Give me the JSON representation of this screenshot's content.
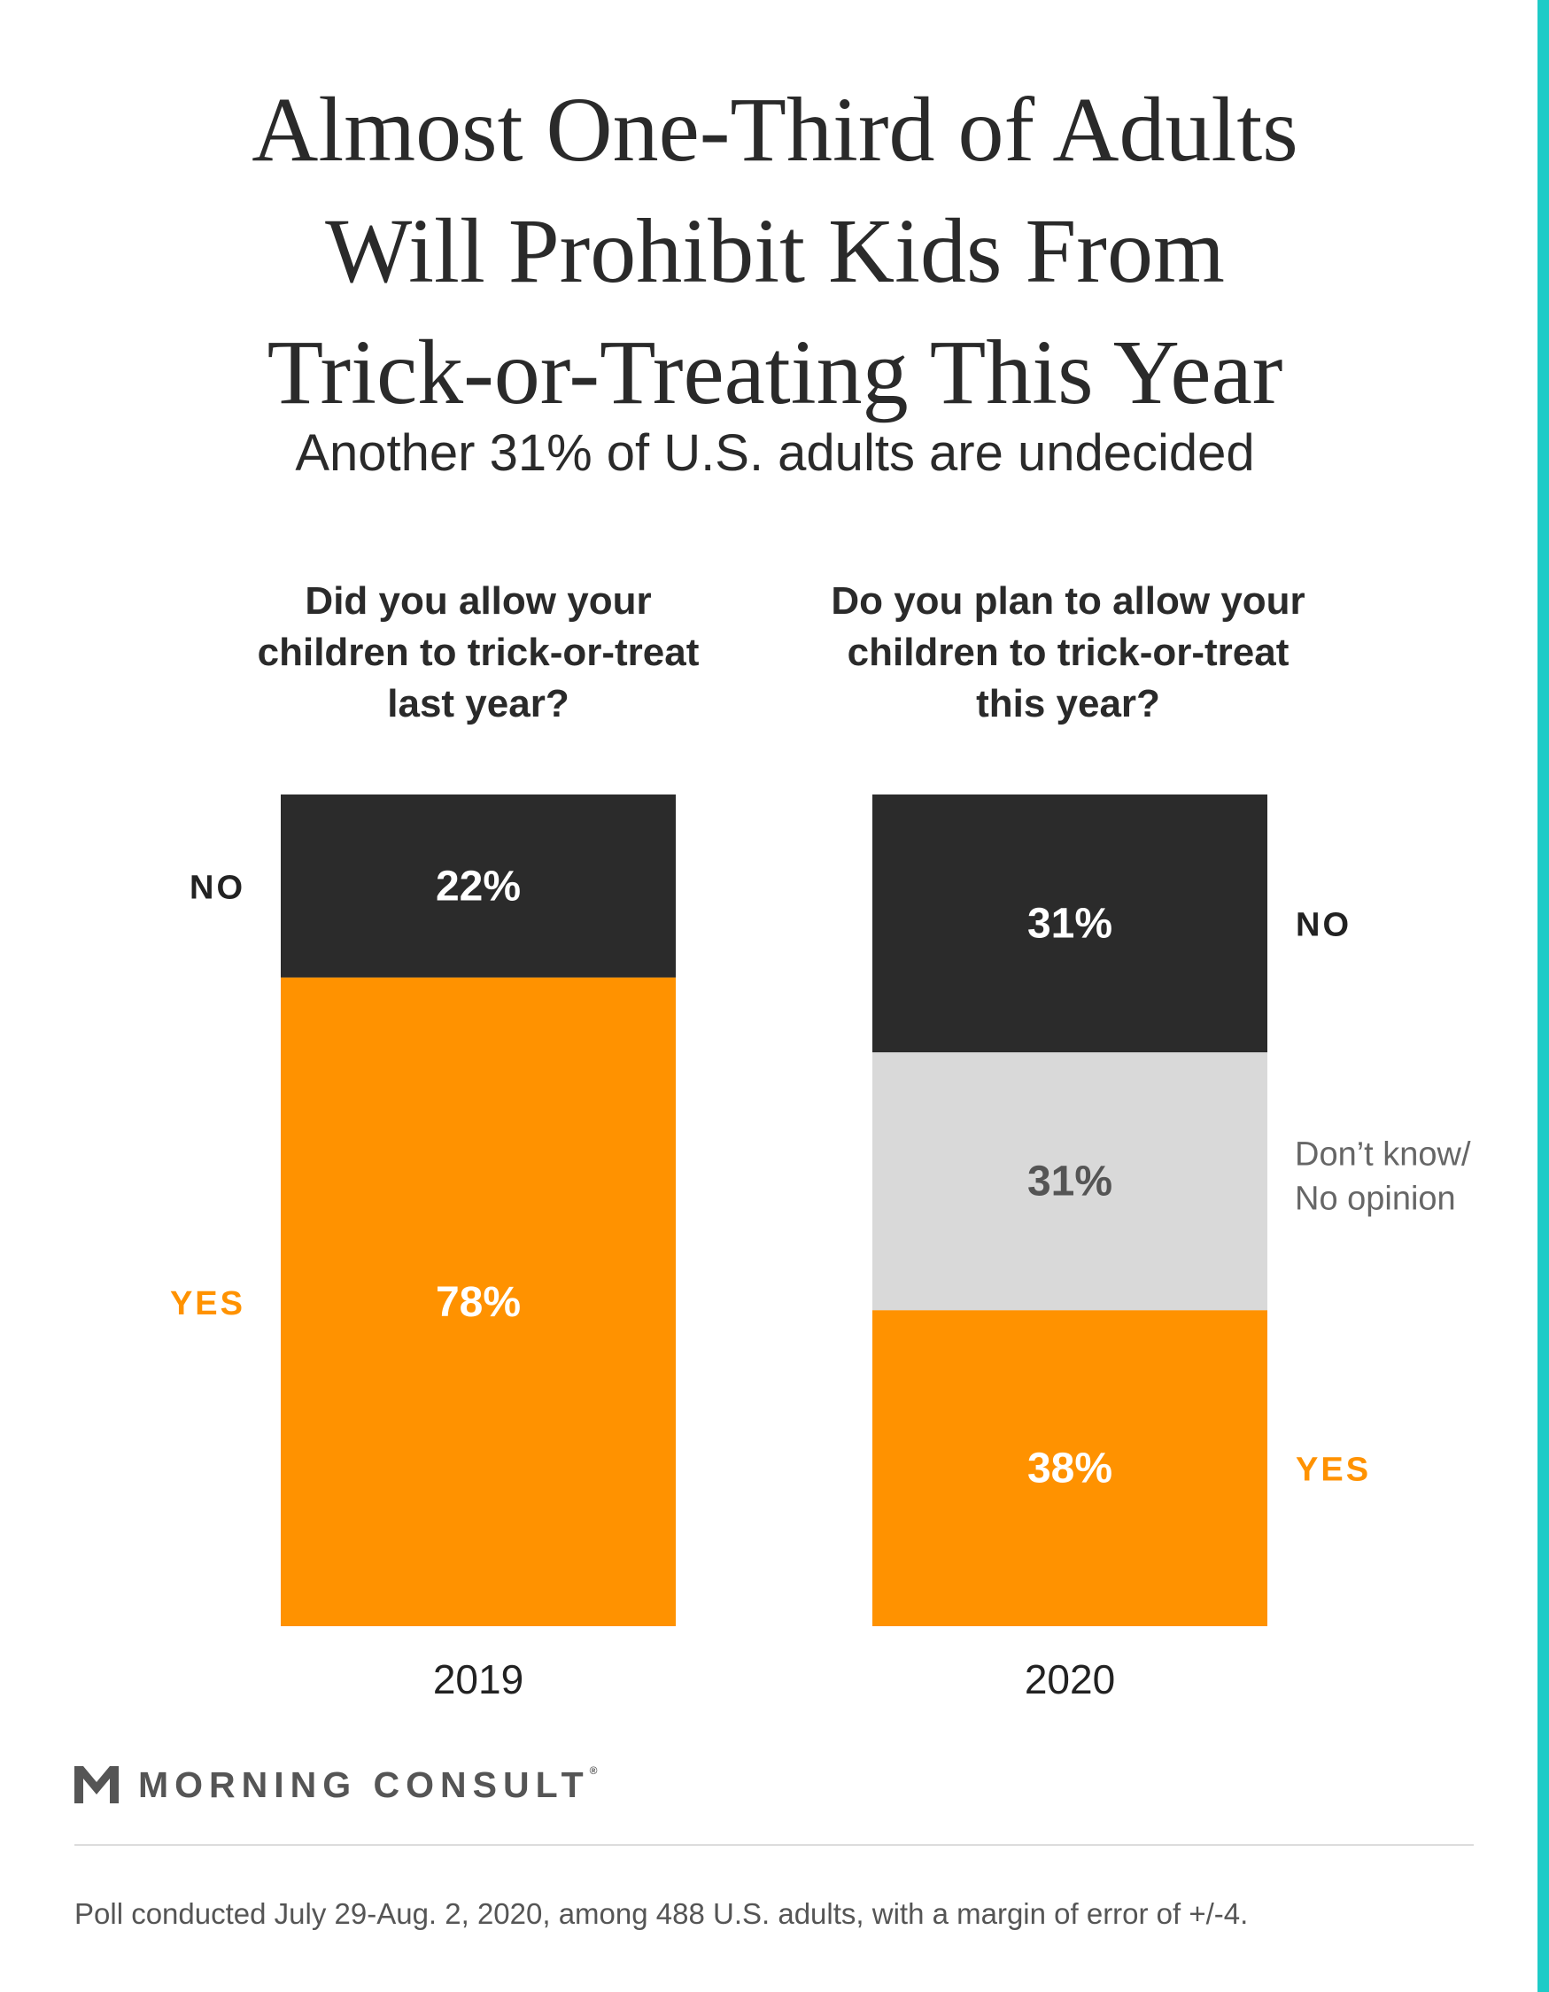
{
  "chart_data": {
    "type": "bar",
    "stacked": true,
    "title_lines": [
      "Almost One-Third of Adults",
      "Will Prohibit Kids From",
      "Trick-or-Treating This Year"
    ],
    "subtitle": "Another 31% of U.S. adults are undecided",
    "categories": [
      "2019",
      "2020"
    ],
    "questions": [
      [
        "Did you allow your",
        "children to trick-or-treat",
        "last year?"
      ],
      [
        "Do you plan to allow your",
        "children to trick-or-treat",
        "this year?"
      ]
    ],
    "series": [
      {
        "name": "YES",
        "color": "#ff9200",
        "label_color": "#ffffff",
        "values": [
          78,
          38
        ],
        "data_labels": [
          "78%",
          "38%"
        ]
      },
      {
        "name": "Don’t know/ No opinion",
        "legend_lines": [
          "Don’t know/",
          "No opinion"
        ],
        "color": "#d9d9d9",
        "label_color": "#555555",
        "values": [
          0,
          31
        ],
        "data_labels": [
          "",
          "31%"
        ]
      },
      {
        "name": "NO",
        "color": "#2b2b2b",
        "label_color": "#ffffff",
        "values": [
          22,
          31
        ],
        "data_labels": [
          "22%",
          "31%"
        ]
      }
    ],
    "ylim": [
      0,
      100
    ],
    "xlabel": "",
    "ylabel": ""
  },
  "brand": {
    "name": "MORNING CONSULT",
    "mark": "®",
    "accent_color": "#1ecbc7"
  },
  "footnote": "Poll conducted July 29-Aug. 2, 2020, among 488 U.S. adults, with a margin of error of +/-4."
}
